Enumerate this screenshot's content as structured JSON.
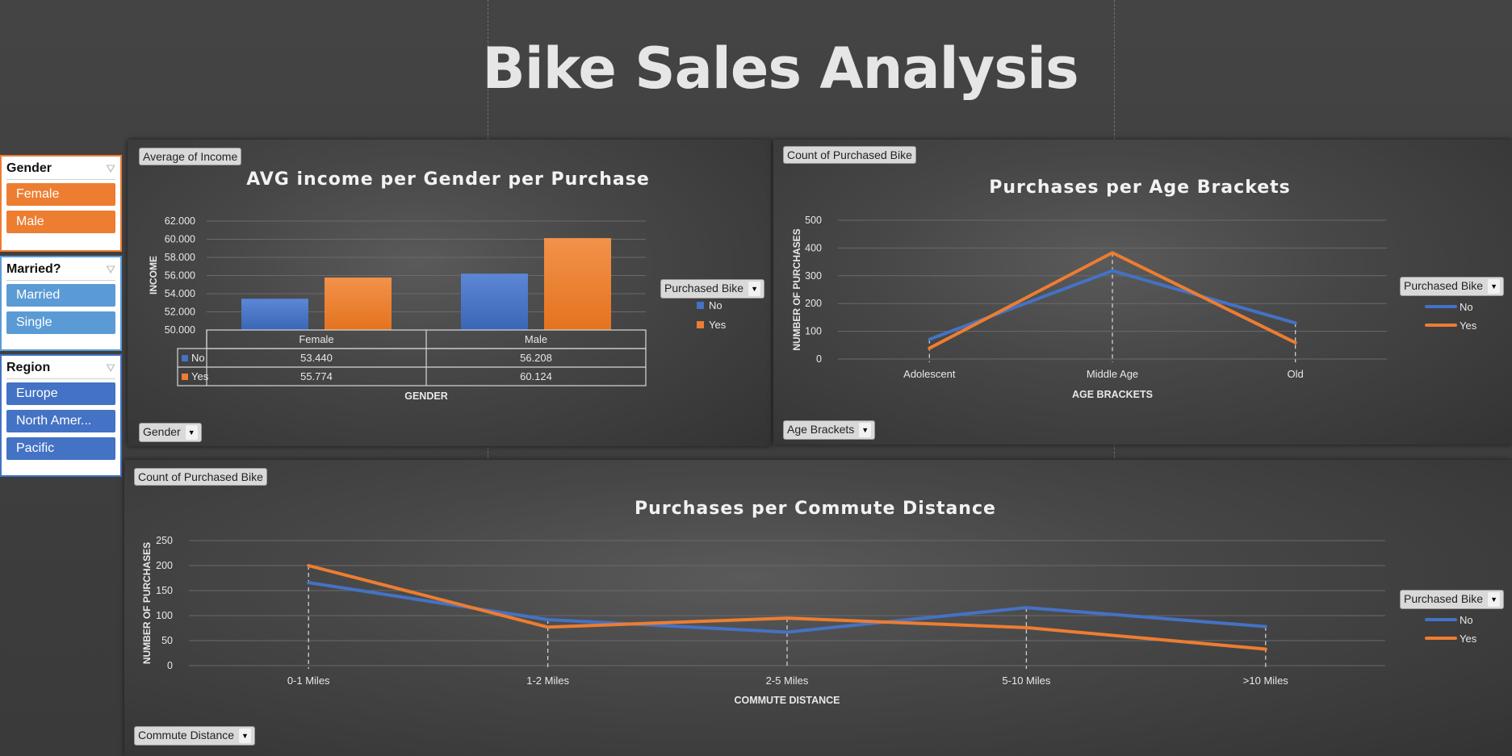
{
  "title": "Bike Sales Analysis",
  "colors": {
    "no": "#4472c4",
    "yes": "#ed7d31",
    "married_fill": "#5b9bd5",
    "region_fill": "#4472c4",
    "gender_fill": "#ed7d31"
  },
  "slicers": [
    {
      "title": "Gender",
      "border": "#ed7d31",
      "fill": "#ed7d31",
      "items": [
        "Female",
        "Male"
      ]
    },
    {
      "title": "Married?",
      "border": "#5b9bd5",
      "fill": "#5b9bd5",
      "items": [
        "Married",
        "Single"
      ]
    },
    {
      "title": "Region",
      "border": "#4472c4",
      "fill": "#4472c4",
      "items": [
        "Europe",
        "North Amer...",
        "Pacific"
      ]
    }
  ],
  "charts": {
    "income": {
      "value_field": "Average of Income",
      "legend_field": "Purchased Bike",
      "axis_field": "Gender"
    },
    "age": {
      "value_field": "Count of Purchased Bike",
      "legend_field": "Purchased Bike",
      "axis_field": "Age Brackets"
    },
    "commute": {
      "value_field": "Count of Purchased Bike",
      "legend_field": "Purchased Bike",
      "axis_field": "Commute Distance"
    }
  },
  "chart_data": [
    {
      "type": "bar",
      "title": "AVG income per Gender per Purchase",
      "xlabel": "GENDER",
      "ylabel": "INCOME",
      "categories": [
        "Female",
        "Male"
      ],
      "series": [
        {
          "name": "No",
          "values": [
            53440,
            56208
          ],
          "labels": [
            "53.440",
            "56.208"
          ]
        },
        {
          "name": "Yes",
          "values": [
            55774,
            60124
          ],
          "labels": [
            "55.774",
            "60.124"
          ]
        }
      ],
      "ylim": [
        50000,
        62000
      ],
      "yticks": [
        "50.000",
        "52.000",
        "54.000",
        "56.000",
        "58.000",
        "60.000",
        "62.000"
      ],
      "data_table": true,
      "legend": "right",
      "grid": true
    },
    {
      "type": "line",
      "title": "Purchases per Age Brackets",
      "xlabel": "AGE BRACKETS",
      "ylabel": "NUMBER OF PURCHASES",
      "categories": [
        "Adolescent",
        "Middle Age",
        "Old"
      ],
      "series": [
        {
          "name": "No",
          "values": [
            71,
            318,
            130
          ]
        },
        {
          "name": "Yes",
          "values": [
            39,
            383,
            59
          ]
        }
      ],
      "ylim": [
        0,
        500
      ],
      "yticks": [
        "0",
        "100",
        "200",
        "300",
        "400",
        "500"
      ],
      "legend": "right",
      "grid": true
    },
    {
      "type": "line",
      "title": "Purchases per Commute Distance",
      "xlabel": "COMMUTE DISTANCE",
      "ylabel": "NUMBER OF PURCHASES",
      "categories": [
        "0-1 Miles",
        "1-2 Miles",
        "2-5 Miles",
        "5-10 Miles",
        ">10 Miles"
      ],
      "series": [
        {
          "name": "No",
          "values": [
            166,
            92,
            67,
            116,
            78
          ]
        },
        {
          "name": "Yes",
          "values": [
            200,
            77,
            95,
            76,
            33
          ]
        }
      ],
      "ylim": [
        0,
        250
      ],
      "yticks": [
        "0",
        "50",
        "100",
        "150",
        "200",
        "250"
      ],
      "legend": "right",
      "grid": true
    }
  ]
}
